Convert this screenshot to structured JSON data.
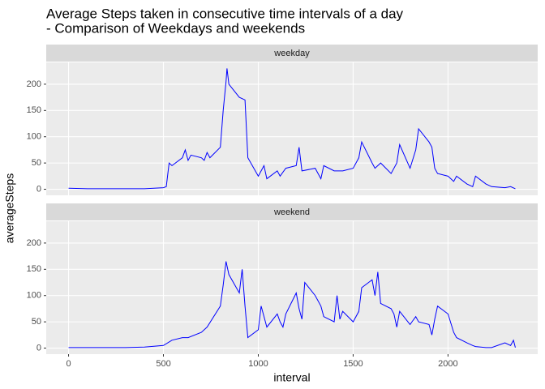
{
  "title": [
    "Average Steps taken in consecutive time intervals of a day",
    "- Comparison of Weekdays and weekends"
  ],
  "xlabel": "interval",
  "ylabel": "averageSteps",
  "chart_data": [
    {
      "type": "line",
      "title": "weekday",
      "color": "#0000ff",
      "grid": true,
      "xlim": [
        -117.75,
        2472.75
      ],
      "ylim": [
        -11.5,
        241.5
      ],
      "xticks": [
        0,
        500,
        1000,
        1500,
        2000
      ],
      "yticks": [
        0,
        50,
        100,
        150,
        200
      ],
      "x": [
        0,
        100,
        200,
        300,
        400,
        500,
        515,
        530,
        545,
        600,
        615,
        630,
        645,
        700,
        715,
        730,
        745,
        800,
        815,
        830,
        835,
        845,
        900,
        930,
        945,
        1000,
        1015,
        1030,
        1045,
        1100,
        1115,
        1145,
        1200,
        1215,
        1230,
        1300,
        1315,
        1330,
        1345,
        1400,
        1445,
        1500,
        1530,
        1545,
        1600,
        1615,
        1630,
        1645,
        1700,
        1730,
        1745,
        1800,
        1830,
        1845,
        1900,
        1915,
        1930,
        1945,
        2000,
        2030,
        2045,
        2100,
        2130,
        2145,
        2200,
        2230,
        2300,
        2330,
        2355
      ],
      "values": [
        2,
        1,
        1,
        1,
        1,
        3,
        5,
        50,
        45,
        60,
        75,
        55,
        65,
        60,
        55,
        70,
        60,
        80,
        150,
        205,
        230,
        200,
        175,
        170,
        60,
        25,
        35,
        45,
        20,
        35,
        25,
        40,
        45,
        80,
        35,
        40,
        30,
        20,
        45,
        35,
        35,
        40,
        60,
        90,
        50,
        40,
        45,
        50,
        30,
        50,
        85,
        40,
        75,
        115,
        90,
        80,
        40,
        30,
        25,
        15,
        25,
        10,
        5,
        25,
        10,
        5,
        3,
        5,
        1
      ]
    },
    {
      "type": "line",
      "title": "weekend",
      "color": "#0000ff",
      "grid": true,
      "xlim": [
        -117.75,
        2472.75
      ],
      "ylim": [
        -11.5,
        241.5
      ],
      "xticks": [
        0,
        500,
        1000,
        1500,
        2000
      ],
      "yticks": [
        0,
        50,
        100,
        150,
        200
      ],
      "x": [
        0,
        100,
        200,
        300,
        400,
        500,
        545,
        600,
        630,
        700,
        730,
        800,
        815,
        830,
        845,
        900,
        915,
        930,
        945,
        1000,
        1015,
        1030,
        1045,
        1100,
        1115,
        1130,
        1145,
        1200,
        1215,
        1230,
        1245,
        1300,
        1330,
        1345,
        1400,
        1415,
        1430,
        1445,
        1500,
        1530,
        1545,
        1600,
        1615,
        1630,
        1645,
        1700,
        1715,
        1730,
        1745,
        1800,
        1830,
        1845,
        1900,
        1915,
        1930,
        1945,
        2000,
        2030,
        2045,
        2100,
        2130,
        2145,
        2200,
        2230,
        2300,
        2330,
        2345,
        2355
      ],
      "values": [
        1,
        1,
        1,
        1,
        2,
        5,
        15,
        20,
        20,
        30,
        40,
        80,
        120,
        165,
        140,
        105,
        150,
        80,
        20,
        35,
        80,
        60,
        40,
        65,
        50,
        40,
        65,
        105,
        75,
        55,
        125,
        100,
        80,
        60,
        50,
        100,
        55,
        70,
        50,
        70,
        115,
        130,
        100,
        145,
        85,
        75,
        65,
        40,
        70,
        45,
        60,
        50,
        45,
        25,
        55,
        80,
        65,
        30,
        20,
        10,
        5,
        3,
        1,
        1,
        10,
        5,
        15,
        1
      ]
    }
  ]
}
